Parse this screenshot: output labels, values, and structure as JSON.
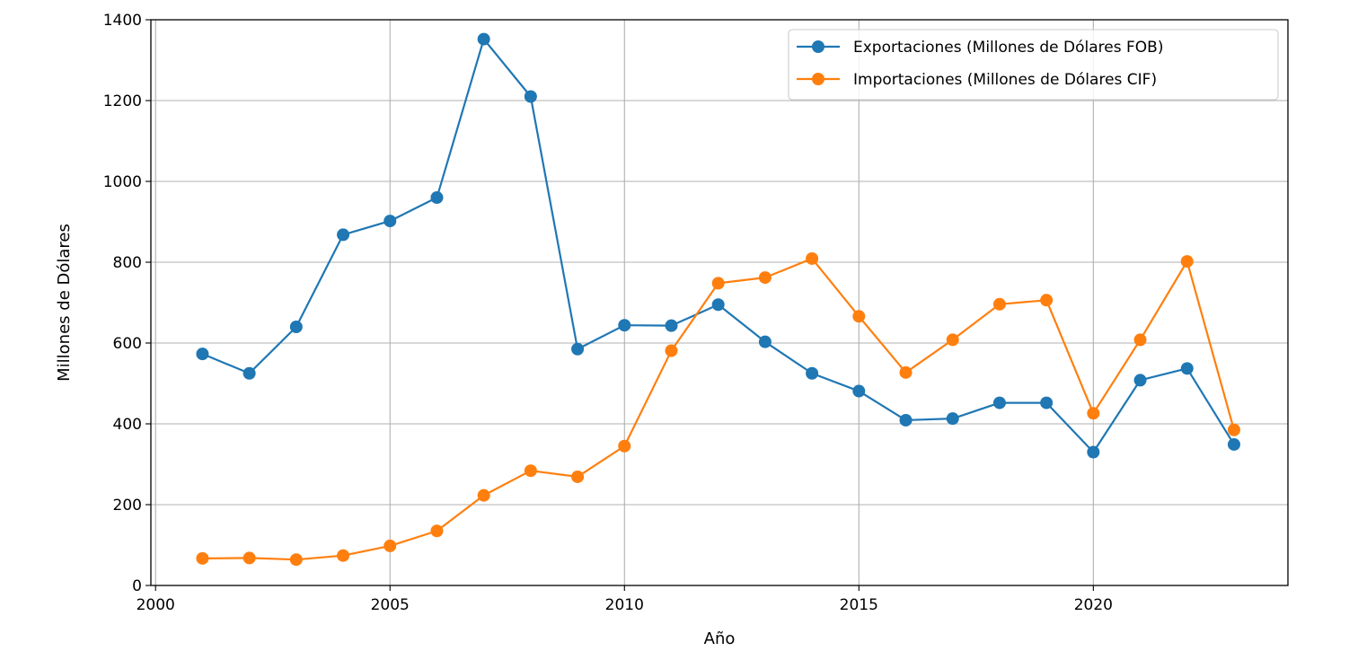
{
  "chart_data": {
    "type": "line",
    "title": "",
    "xlabel": "Año",
    "ylabel": "Millones de Dólares",
    "xlim": [
      1999.9,
      2024.15
    ],
    "ylim": [
      0,
      1400
    ],
    "xticks": [
      2000,
      2005,
      2010,
      2015,
      2020
    ],
    "yticks": [
      0,
      200,
      400,
      600,
      800,
      1000,
      1200,
      1400
    ],
    "grid": true,
    "legend_position": "top-right",
    "x": [
      2001,
      2002,
      2003,
      2004,
      2005,
      2006,
      2007,
      2008,
      2009,
      2010,
      2011,
      2012,
      2013,
      2014,
      2015,
      2016,
      2017,
      2018,
      2019,
      2020,
      2021,
      2022,
      2023
    ],
    "series": [
      {
        "name": "Exportaciones (Millones de Dólares FOB)",
        "color": "#1f77b4",
        "values": [
          573,
          525,
          640,
          868,
          902,
          960,
          1352,
          1210,
          585,
          644,
          643,
          695,
          603,
          525,
          481,
          409,
          413,
          452,
          452,
          330,
          508,
          537,
          349
        ]
      },
      {
        "name": "Importaciones (Millones de Dólares CIF)",
        "color": "#ff7f0e",
        "values": [
          67,
          68,
          64,
          74,
          98,
          135,
          223,
          284,
          269,
          345,
          581,
          748,
          762,
          809,
          666,
          527,
          608,
          696,
          706,
          426,
          608,
          802,
          385
        ]
      }
    ]
  }
}
